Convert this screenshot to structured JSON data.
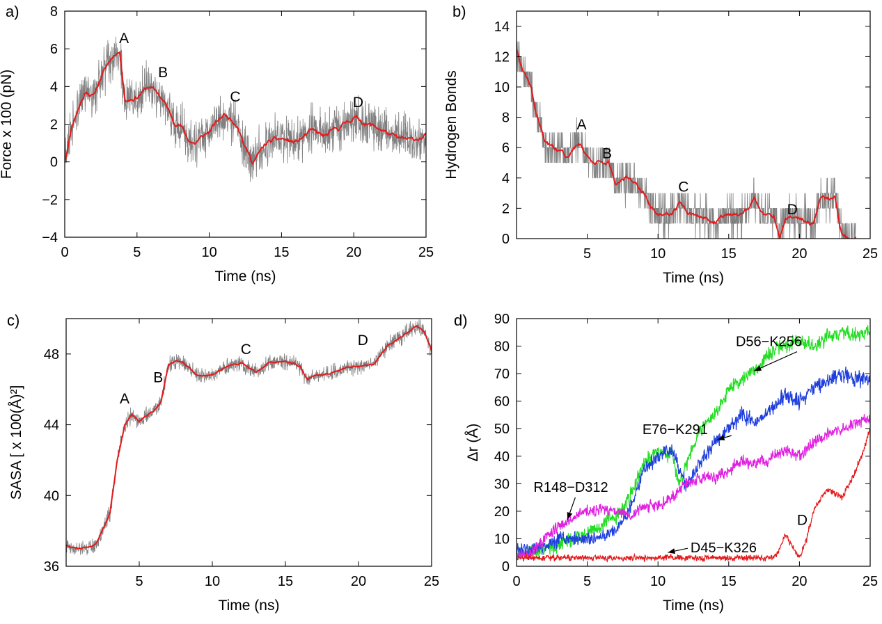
{
  "chart_data": [
    {
      "type": "line",
      "panel_label": "a)",
      "xlabel": "Time (ns)",
      "ylabel": "Force x 100 (pN)",
      "xlim": [
        0,
        25
      ],
      "ylim": [
        -4,
        8
      ],
      "xticks": [
        0,
        5,
        10,
        15,
        20,
        25
      ],
      "yticks": [
        -4,
        -2,
        0,
        2,
        4,
        6,
        8
      ],
      "xtick_labels": [
        "0",
        "5",
        "10",
        "15",
        "20",
        "25"
      ],
      "ytick_labels": [
        "−4",
        "−2",
        "0",
        "2",
        "4",
        "6",
        "8"
      ],
      "raw_color": "#808080",
      "smooth_color": "#e31a1c",
      "noise": 1.2,
      "x": [
        0,
        0.5,
        1,
        1.5,
        2,
        2.5,
        3,
        3.5,
        3.8,
        4.2,
        5,
        5.8,
        6.5,
        7,
        7.5,
        8,
        8.5,
        9,
        10,
        11,
        11.5,
        12,
        12.5,
        13,
        14,
        15,
        16,
        17,
        18,
        19,
        20,
        21,
        22,
        23,
        24,
        25
      ],
      "values": [
        0,
        2,
        3,
        3.8,
        3.5,
        4.5,
        5.2,
        5.8,
        5.9,
        3.3,
        3.5,
        4,
        3.6,
        3,
        2.2,
        2,
        1.2,
        1,
        1.6,
        2.5,
        2.3,
        2,
        0.8,
        0,
        1,
        1.2,
        1,
        1.6,
        1.3,
        1.8,
        2.4,
        2,
        1.7,
        1.2,
        1.1,
        1.4
      ],
      "markers": [
        {
          "label": "A",
          "x": 4.1,
          "y": 6.3
        },
        {
          "label": "B",
          "x": 6.8,
          "y": 4.5
        },
        {
          "label": "C",
          "x": 11.8,
          "y": 3.2
        },
        {
          "label": "D",
          "x": 20.3,
          "y": 2.9
        }
      ]
    },
    {
      "type": "line",
      "panel_label": "b)",
      "xlabel": "Time (ns)",
      "ylabel": "Hydrogen Bonds",
      "xlim": [
        0,
        25
      ],
      "ylim": [
        0,
        15
      ],
      "xticks": [
        5,
        10,
        15,
        20,
        25
      ],
      "yticks": [
        0,
        2,
        4,
        6,
        8,
        10,
        12,
        14
      ],
      "xtick_labels": [
        "5",
        "10",
        "15",
        "20",
        "25"
      ],
      "ytick_labels": [
        "0",
        "2",
        "4",
        "6",
        "8",
        "10",
        "12",
        "14"
      ],
      "raw_color": "#808080",
      "smooth_color": "#e31a1c",
      "noise": 1.3,
      "x": [
        0,
        0.5,
        1,
        1.5,
        2,
        2.5,
        3,
        3.5,
        4,
        4.5,
        5,
        5.5,
        6,
        6.5,
        7,
        7.5,
        8,
        8.5,
        9,
        9.5,
        10,
        11,
        11.5,
        12,
        13,
        14,
        15,
        16,
        16.8,
        17.5,
        18.2,
        18.6,
        19,
        20,
        21,
        21.5,
        22,
        22.5,
        23,
        23.5,
        24
      ],
      "values": [
        12.5,
        11,
        10,
        8,
        6.2,
        6,
        5.8,
        5.5,
        6,
        6.2,
        5.5,
        5,
        5,
        5,
        3.5,
        3.8,
        4,
        3.5,
        3,
        2,
        1.5,
        1.6,
        2.3,
        1.6,
        1.5,
        1.2,
        1.5,
        1.5,
        2.5,
        1.5,
        1.6,
        0.2,
        1.3,
        1.3,
        1,
        2.8,
        2.6,
        2.6,
        0.2,
        0,
        0
      ],
      "markers": [
        {
          "label": "A",
          "x": 4.6,
          "y": 7.2
        },
        {
          "label": "B",
          "x": 6.4,
          "y": 5.3
        },
        {
          "label": "C",
          "x": 11.8,
          "y": 3.1
        },
        {
          "label": "D",
          "x": 19.5,
          "y": 1.6
        }
      ]
    },
    {
      "type": "line",
      "panel_label": "c)",
      "xlabel": "Time (ns)",
      "ylabel": "SASA [ x 100(Å)²]",
      "xlim": [
        0,
        25
      ],
      "ylim": [
        36,
        50
      ],
      "xticks": [
        5,
        10,
        15,
        20,
        25
      ],
      "yticks": [
        36,
        40,
        44,
        48
      ],
      "xtick_labels": [
        "5",
        "10",
        "15",
        "20",
        "25"
      ],
      "ytick_labels": [
        "36",
        "40",
        "44",
        "48"
      ],
      "raw_color": "#808080",
      "smooth_color": "#e31a1c",
      "noise": 0.45,
      "x": [
        0,
        1,
        2,
        2.5,
        3,
        3.5,
        4,
        4.5,
        5,
        6,
        6.5,
        7,
        7.5,
        8,
        9,
        10,
        11,
        12,
        13,
        14,
        15,
        16,
        16.5,
        17,
        18,
        19,
        20,
        21,
        22,
        23,
        24,
        24.5,
        25
      ],
      "values": [
        37.2,
        37,
        37.2,
        38,
        39,
        42,
        44,
        44.6,
        44.2,
        44.8,
        45.3,
        47.4,
        47.6,
        47.5,
        46.8,
        46.8,
        47.3,
        47.5,
        46.9,
        47.5,
        47.6,
        47.3,
        46.6,
        46.8,
        46.9,
        47.2,
        47.3,
        47.4,
        48.5,
        49,
        49.6,
        49.3,
        48.2
      ],
      "markers": [
        {
          "label": "A",
          "x": 4.0,
          "y": 45.2
        },
        {
          "label": "B",
          "x": 6.3,
          "y": 46.4
        },
        {
          "label": "C",
          "x": 12.3,
          "y": 48.0
        },
        {
          "label": "D",
          "x": 20.3,
          "y": 48.5
        }
      ]
    },
    {
      "type": "line",
      "panel_label": "d)",
      "xlabel": "Time (ns)",
      "ylabel": "Δr (Å)",
      "xlim": [
        0,
        25
      ],
      "ylim": [
        0,
        90
      ],
      "xticks": [
        0,
        5,
        10,
        15,
        20,
        25
      ],
      "yticks": [
        0,
        10,
        20,
        30,
        40,
        50,
        60,
        70,
        80,
        90
      ],
      "xtick_labels": [
        "0",
        "5",
        "10",
        "15",
        "20",
        "25"
      ],
      "ytick_labels": [
        "0",
        "10",
        "20",
        "30",
        "40",
        "50",
        "60",
        "70",
        "80",
        "90"
      ],
      "series": [
        {
          "name": "D56−K256",
          "color": "#22dd22",
          "noise": 2.5,
          "x": [
            0,
            2,
            3,
            4,
            5,
            6,
            7,
            8,
            9,
            10,
            11,
            11.5,
            12,
            13,
            14,
            15,
            16,
            17,
            18,
            19,
            20,
            21,
            22,
            23,
            24,
            25
          ],
          "values": [
            5,
            6,
            8,
            10,
            12,
            15,
            18,
            25,
            38,
            42,
            40,
            30,
            38,
            50,
            55,
            65,
            68,
            72,
            78,
            80,
            82,
            80,
            84,
            85,
            84,
            86
          ]
        },
        {
          "name": "E76−K291",
          "color": "#1f3fdd",
          "noise": 2.5,
          "x": [
            0,
            2,
            3,
            4,
            5,
            6,
            7,
            8,
            9,
            10,
            11,
            11.5,
            12,
            13,
            14,
            15,
            16,
            17,
            18,
            19,
            20,
            21,
            22,
            23,
            24,
            25
          ],
          "values": [
            5,
            7,
            10,
            10,
            9,
            10,
            13,
            20,
            35,
            40,
            42,
            35,
            30,
            38,
            45,
            50,
            55,
            52,
            58,
            62,
            60,
            65,
            68,
            70,
            68,
            68
          ]
        },
        {
          "name": "R148−D312",
          "color": "#e020e0",
          "noise": 2.0,
          "x": [
            0,
            1,
            2,
            3,
            4,
            5,
            6,
            7,
            8,
            9,
            10,
            11,
            12,
            13,
            14,
            15,
            16,
            17,
            18,
            19,
            20,
            21,
            22,
            23,
            24,
            25
          ],
          "values": [
            4,
            5,
            10,
            15,
            18,
            20,
            20,
            20,
            18,
            22,
            22,
            25,
            30,
            32,
            32,
            35,
            38,
            37,
            40,
            42,
            40,
            45,
            48,
            50,
            52,
            54
          ]
        },
        {
          "name": "D45−K326",
          "color": "#e31a1c",
          "noise": 1.0,
          "x": [
            0,
            2,
            4,
            6,
            8,
            10,
            12,
            14,
            16,
            18,
            18.5,
            19,
            19.5,
            20,
            20.5,
            21,
            21.5,
            22,
            23,
            24,
            24.5,
            25
          ],
          "values": [
            3,
            3,
            3,
            3,
            3,
            3,
            3,
            3,
            3,
            3,
            5,
            12,
            7,
            3,
            10,
            20,
            25,
            28,
            25,
            35,
            42,
            50
          ]
        }
      ],
      "markers": [
        {
          "label": "D",
          "x": 20.2,
          "y": 15
        }
      ],
      "annotations": [
        {
          "label": "D56−K256",
          "x": 15.5,
          "y": 80,
          "ax": 16.8,
          "ay": 71
        },
        {
          "label": "E76−K291",
          "x": 8.9,
          "y": 48,
          "ax": 14.2,
          "ay": 46
        },
        {
          "label": "R148−D312",
          "x": 1.2,
          "y": 27,
          "ax": 3.6,
          "ay": 17
        },
        {
          "label": "D45−K326",
          "x": 12.3,
          "y": 5,
          "ax": 10.7,
          "ay": 5
        }
      ]
    }
  ]
}
